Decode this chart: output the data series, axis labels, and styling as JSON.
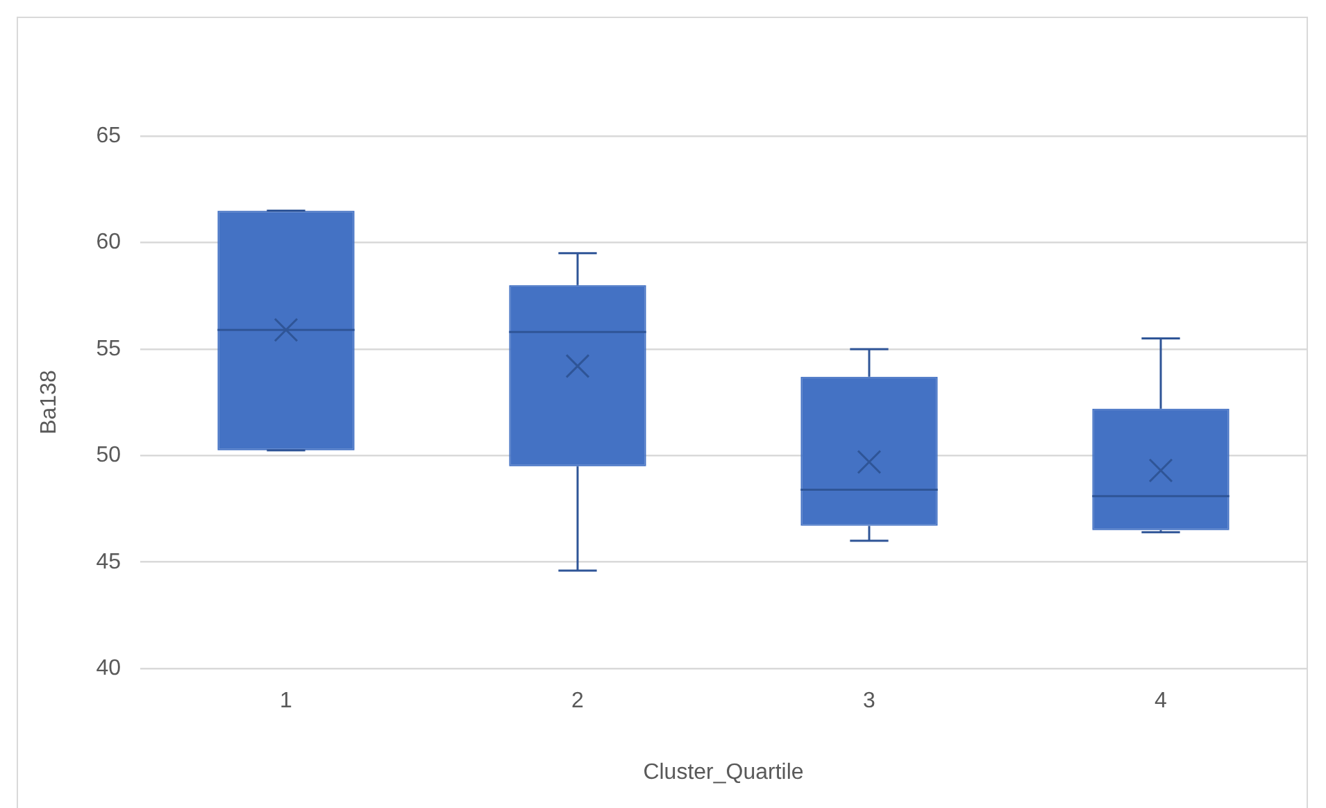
{
  "chart_data": {
    "type": "box",
    "xlabel": "Cluster_Quartile",
    "ylabel": "Ba138",
    "categories": [
      "1",
      "2",
      "3",
      "4"
    ],
    "color": "#4472c4",
    "boxes": [
      {
        "low": 50.25,
        "q1": 50.25,
        "median": 55.9,
        "q3": 61.5,
        "high": 61.5,
        "mean": 55.9
      },
      {
        "low": 44.6,
        "q1": 49.5,
        "median": 55.8,
        "q3": 58.0,
        "high": 59.5,
        "mean": 54.2
      },
      {
        "low": 46.0,
        "q1": 46.7,
        "median": 48.4,
        "q3": 53.7,
        "high": 55.0,
        "mean": 49.7
      },
      {
        "low": 46.4,
        "q1": 46.5,
        "median": 48.1,
        "q3": 52.2,
        "high": 55.5,
        "mean": 49.3
      }
    ],
    "ylim": [
      40,
      65
    ],
    "yticks": [
      40,
      45,
      50,
      55,
      60,
      65
    ],
    "grid": "y",
    "legend": false
  }
}
